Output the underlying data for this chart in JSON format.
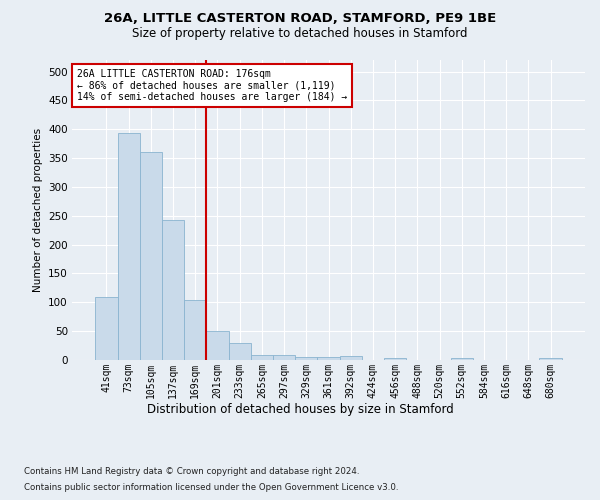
{
  "title1": "26A, LITTLE CASTERTON ROAD, STAMFORD, PE9 1BE",
  "title2": "Size of property relative to detached houses in Stamford",
  "xlabel": "Distribution of detached houses by size in Stamford",
  "ylabel": "Number of detached properties",
  "footnote1": "Contains HM Land Registry data © Crown copyright and database right 2024.",
  "footnote2": "Contains public sector information licensed under the Open Government Licence v3.0.",
  "bar_labels": [
    "41sqm",
    "73sqm",
    "105sqm",
    "137sqm",
    "169sqm",
    "201sqm",
    "233sqm",
    "265sqm",
    "297sqm",
    "329sqm",
    "361sqm",
    "392sqm",
    "424sqm",
    "456sqm",
    "488sqm",
    "520sqm",
    "552sqm",
    "584sqm",
    "616sqm",
    "648sqm",
    "680sqm"
  ],
  "bar_values": [
    110,
    393,
    360,
    243,
    104,
    50,
    30,
    9,
    8,
    5,
    5,
    7,
    0,
    4,
    0,
    0,
    3,
    0,
    0,
    0,
    3
  ],
  "bar_color": "#c9daea",
  "bar_edge_color": "#8ab4d0",
  "vline_x": 4.5,
  "vline_color": "#cc0000",
  "annotation_title": "26A LITTLE CASTERTON ROAD: 176sqm",
  "annotation_line1": "← 86% of detached houses are smaller (1,119)",
  "annotation_line2": "14% of semi-detached houses are larger (184) →",
  "annotation_box_color": "#cc0000",
  "ylim": [
    0,
    520
  ],
  "yticks": [
    0,
    50,
    100,
    150,
    200,
    250,
    300,
    350,
    400,
    450,
    500
  ],
  "background_color": "#e8eef4",
  "plot_background": "#e8eef4",
  "grid_color": "#ffffff"
}
